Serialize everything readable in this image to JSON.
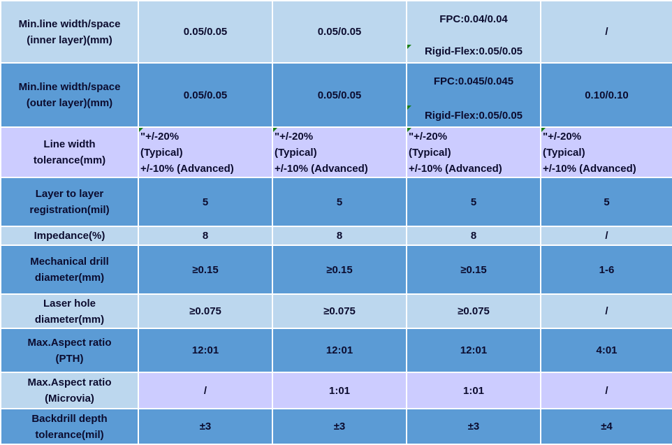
{
  "rows": [
    {
      "label": "Min.line width/space\n(inner layer)(mm)",
      "values": [
        "0.05/0.05",
        "0.05/0.05",
        "",
        "/"
      ],
      "fpc": {
        "top": "FPC:0.04/0.04",
        "bottom": "Rigid-Flex:0.05/0.05"
      }
    },
    {
      "label": "Min.line width/space\n(outer layer)(mm)",
      "values": [
        "0.05/0.05",
        "0.05/0.05",
        "",
        "0.10/0.10"
      ],
      "fpc": {
        "top": "FPC:0.045/0.045",
        "bottom": "Rigid-Flex:0.05/0.05"
      }
    },
    {
      "label": "Line width\ntolerance(mm)",
      "tol": {
        "l1": "\"+/-20%",
        "l2": "(Typical)",
        "l3": "+/-10%  (Advanced)"
      }
    },
    {
      "label": "Layer to layer\nregistration(mil)",
      "values": [
        "5",
        "5",
        "5",
        "5"
      ]
    },
    {
      "label": "Impedance(%)",
      "values": [
        "8",
        "8",
        "8",
        "/"
      ]
    },
    {
      "label": "Mechanical drill\ndiameter(mm)",
      "values": [
        "≥0.15",
        "≥0.15",
        "≥0.15",
        "1-6"
      ]
    },
    {
      "label": "Laser hole\ndiameter(mm)",
      "values": [
        "≥0.075",
        "≥0.075",
        "≥0.075",
        "/"
      ]
    },
    {
      "label": "Max.Aspect ratio\n(PTH)",
      "values": [
        "12:01",
        "12:01",
        "12:01",
        "4:01"
      ]
    },
    {
      "label": "Max.Aspect ratio\n(Microvia)",
      "values": [
        "/",
        "1:01",
        "1:01",
        "/"
      ]
    },
    {
      "label": "Backdrill depth\ntolerance(mil)",
      "values": [
        "±3",
        "±3",
        "±3",
        "±4"
      ]
    }
  ],
  "colors": {
    "light": "#bcd7ee",
    "mid": "#5b9bd5",
    "lavender": "#ccccff",
    "text": "#0b0b2e",
    "marker": "#1a7f1a"
  }
}
